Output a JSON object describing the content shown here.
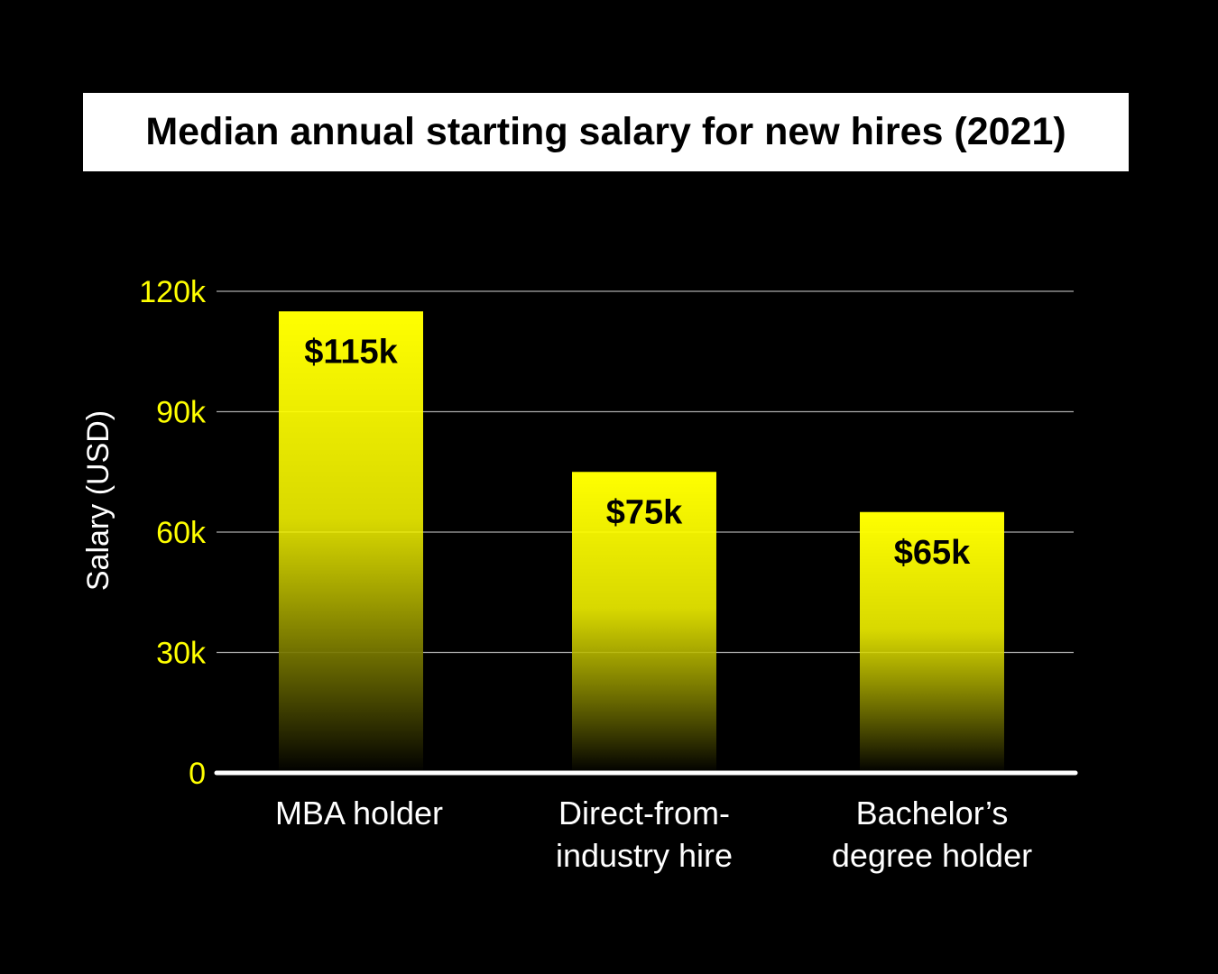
{
  "chart_data": {
    "type": "bar",
    "title": "Median annual starting salary for new hires (2021)",
    "ylabel": "Salary (USD)",
    "xlabel": "",
    "ylim": [
      0,
      120000
    ],
    "yticks": [
      {
        "value": 0,
        "label": "0"
      },
      {
        "value": 30000,
        "label": "30k"
      },
      {
        "value": 60000,
        "label": "60k"
      },
      {
        "value": 90000,
        "label": "90k"
      },
      {
        "value": 120000,
        "label": "120k"
      }
    ],
    "grid": true,
    "categories": [
      [
        "MBA holder"
      ],
      [
        "Direct-from-",
        "industry hire"
      ],
      [
        "Bachelor’s",
        "degree holder"
      ]
    ],
    "values": [
      115000,
      75000,
      65000
    ],
    "data_labels": [
      "$115k",
      "$75k",
      "$65k"
    ],
    "colors": {
      "background": "#000000",
      "bar_top": "#ffff00",
      "bar_bottom": "#000000",
      "tick_label": "#ffff00",
      "axis_label": "#ffffff",
      "category_label": "#ffffff",
      "gridline": "#aaaaaa",
      "baseline": "#ffffff",
      "data_label": "#000000"
    }
  }
}
